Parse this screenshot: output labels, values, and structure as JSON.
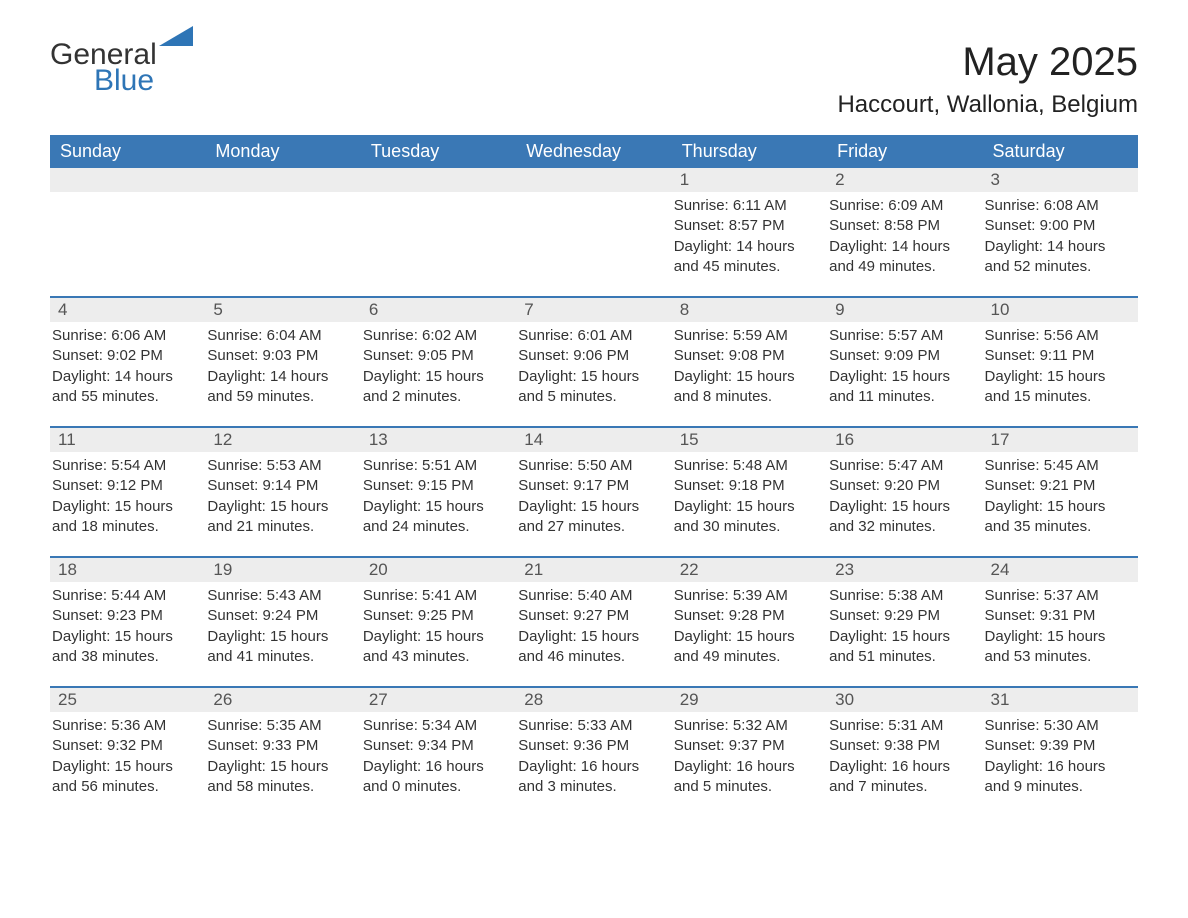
{
  "brand": {
    "word1": "General",
    "word2": "Blue",
    "word1_color": "#333333",
    "word2_color": "#2e75b6",
    "triangle_color": "#2e75b6",
    "font_size_pt": 30
  },
  "title": {
    "month": "May 2025",
    "location": "Haccourt, Wallonia, Belgium",
    "month_font_size_pt": 40,
    "location_font_size_pt": 24,
    "color": "#222222"
  },
  "calendar": {
    "type": "table",
    "header_bg": "#3a78b5",
    "header_fg": "#ffffff",
    "row_border_color": "#3a78b5",
    "daynum_bg": "#ededed",
    "daynum_fg": "#555555",
    "body_fg": "#333333",
    "background_color": "#ffffff",
    "body_font_size_pt": 15,
    "header_font_size_pt": 18,
    "columns": [
      "Sunday",
      "Monday",
      "Tuesday",
      "Wednesday",
      "Thursday",
      "Friday",
      "Saturday"
    ],
    "weeks": [
      [
        {
          "empty": true
        },
        {
          "empty": true
        },
        {
          "empty": true
        },
        {
          "empty": true
        },
        {
          "day": "1",
          "sunrise": "Sunrise: 6:11 AM",
          "sunset": "Sunset: 8:57 PM",
          "daylight1": "Daylight: 14 hours",
          "daylight2": "and 45 minutes."
        },
        {
          "day": "2",
          "sunrise": "Sunrise: 6:09 AM",
          "sunset": "Sunset: 8:58 PM",
          "daylight1": "Daylight: 14 hours",
          "daylight2": "and 49 minutes."
        },
        {
          "day": "3",
          "sunrise": "Sunrise: 6:08 AM",
          "sunset": "Sunset: 9:00 PM",
          "daylight1": "Daylight: 14 hours",
          "daylight2": "and 52 minutes."
        }
      ],
      [
        {
          "day": "4",
          "sunrise": "Sunrise: 6:06 AM",
          "sunset": "Sunset: 9:02 PM",
          "daylight1": "Daylight: 14 hours",
          "daylight2": "and 55 minutes."
        },
        {
          "day": "5",
          "sunrise": "Sunrise: 6:04 AM",
          "sunset": "Sunset: 9:03 PM",
          "daylight1": "Daylight: 14 hours",
          "daylight2": "and 59 minutes."
        },
        {
          "day": "6",
          "sunrise": "Sunrise: 6:02 AM",
          "sunset": "Sunset: 9:05 PM",
          "daylight1": "Daylight: 15 hours",
          "daylight2": "and 2 minutes."
        },
        {
          "day": "7",
          "sunrise": "Sunrise: 6:01 AM",
          "sunset": "Sunset: 9:06 PM",
          "daylight1": "Daylight: 15 hours",
          "daylight2": "and 5 minutes."
        },
        {
          "day": "8",
          "sunrise": "Sunrise: 5:59 AM",
          "sunset": "Sunset: 9:08 PM",
          "daylight1": "Daylight: 15 hours",
          "daylight2": "and 8 minutes."
        },
        {
          "day": "9",
          "sunrise": "Sunrise: 5:57 AM",
          "sunset": "Sunset: 9:09 PM",
          "daylight1": "Daylight: 15 hours",
          "daylight2": "and 11 minutes."
        },
        {
          "day": "10",
          "sunrise": "Sunrise: 5:56 AM",
          "sunset": "Sunset: 9:11 PM",
          "daylight1": "Daylight: 15 hours",
          "daylight2": "and 15 minutes."
        }
      ],
      [
        {
          "day": "11",
          "sunrise": "Sunrise: 5:54 AM",
          "sunset": "Sunset: 9:12 PM",
          "daylight1": "Daylight: 15 hours",
          "daylight2": "and 18 minutes."
        },
        {
          "day": "12",
          "sunrise": "Sunrise: 5:53 AM",
          "sunset": "Sunset: 9:14 PM",
          "daylight1": "Daylight: 15 hours",
          "daylight2": "and 21 minutes."
        },
        {
          "day": "13",
          "sunrise": "Sunrise: 5:51 AM",
          "sunset": "Sunset: 9:15 PM",
          "daylight1": "Daylight: 15 hours",
          "daylight2": "and 24 minutes."
        },
        {
          "day": "14",
          "sunrise": "Sunrise: 5:50 AM",
          "sunset": "Sunset: 9:17 PM",
          "daylight1": "Daylight: 15 hours",
          "daylight2": "and 27 minutes."
        },
        {
          "day": "15",
          "sunrise": "Sunrise: 5:48 AM",
          "sunset": "Sunset: 9:18 PM",
          "daylight1": "Daylight: 15 hours",
          "daylight2": "and 30 minutes."
        },
        {
          "day": "16",
          "sunrise": "Sunrise: 5:47 AM",
          "sunset": "Sunset: 9:20 PM",
          "daylight1": "Daylight: 15 hours",
          "daylight2": "and 32 minutes."
        },
        {
          "day": "17",
          "sunrise": "Sunrise: 5:45 AM",
          "sunset": "Sunset: 9:21 PM",
          "daylight1": "Daylight: 15 hours",
          "daylight2": "and 35 minutes."
        }
      ],
      [
        {
          "day": "18",
          "sunrise": "Sunrise: 5:44 AM",
          "sunset": "Sunset: 9:23 PM",
          "daylight1": "Daylight: 15 hours",
          "daylight2": "and 38 minutes."
        },
        {
          "day": "19",
          "sunrise": "Sunrise: 5:43 AM",
          "sunset": "Sunset: 9:24 PM",
          "daylight1": "Daylight: 15 hours",
          "daylight2": "and 41 minutes."
        },
        {
          "day": "20",
          "sunrise": "Sunrise: 5:41 AM",
          "sunset": "Sunset: 9:25 PM",
          "daylight1": "Daylight: 15 hours",
          "daylight2": "and 43 minutes."
        },
        {
          "day": "21",
          "sunrise": "Sunrise: 5:40 AM",
          "sunset": "Sunset: 9:27 PM",
          "daylight1": "Daylight: 15 hours",
          "daylight2": "and 46 minutes."
        },
        {
          "day": "22",
          "sunrise": "Sunrise: 5:39 AM",
          "sunset": "Sunset: 9:28 PM",
          "daylight1": "Daylight: 15 hours",
          "daylight2": "and 49 minutes."
        },
        {
          "day": "23",
          "sunrise": "Sunrise: 5:38 AM",
          "sunset": "Sunset: 9:29 PM",
          "daylight1": "Daylight: 15 hours",
          "daylight2": "and 51 minutes."
        },
        {
          "day": "24",
          "sunrise": "Sunrise: 5:37 AM",
          "sunset": "Sunset: 9:31 PM",
          "daylight1": "Daylight: 15 hours",
          "daylight2": "and 53 minutes."
        }
      ],
      [
        {
          "day": "25",
          "sunrise": "Sunrise: 5:36 AM",
          "sunset": "Sunset: 9:32 PM",
          "daylight1": "Daylight: 15 hours",
          "daylight2": "and 56 minutes."
        },
        {
          "day": "26",
          "sunrise": "Sunrise: 5:35 AM",
          "sunset": "Sunset: 9:33 PM",
          "daylight1": "Daylight: 15 hours",
          "daylight2": "and 58 minutes."
        },
        {
          "day": "27",
          "sunrise": "Sunrise: 5:34 AM",
          "sunset": "Sunset: 9:34 PM",
          "daylight1": "Daylight: 16 hours",
          "daylight2": "and 0 minutes."
        },
        {
          "day": "28",
          "sunrise": "Sunrise: 5:33 AM",
          "sunset": "Sunset: 9:36 PM",
          "daylight1": "Daylight: 16 hours",
          "daylight2": "and 3 minutes."
        },
        {
          "day": "29",
          "sunrise": "Sunrise: 5:32 AM",
          "sunset": "Sunset: 9:37 PM",
          "daylight1": "Daylight: 16 hours",
          "daylight2": "and 5 minutes."
        },
        {
          "day": "30",
          "sunrise": "Sunrise: 5:31 AM",
          "sunset": "Sunset: 9:38 PM",
          "daylight1": "Daylight: 16 hours",
          "daylight2": "and 7 minutes."
        },
        {
          "day": "31",
          "sunrise": "Sunrise: 5:30 AM",
          "sunset": "Sunset: 9:39 PM",
          "daylight1": "Daylight: 16 hours",
          "daylight2": "and 9 minutes."
        }
      ]
    ]
  }
}
